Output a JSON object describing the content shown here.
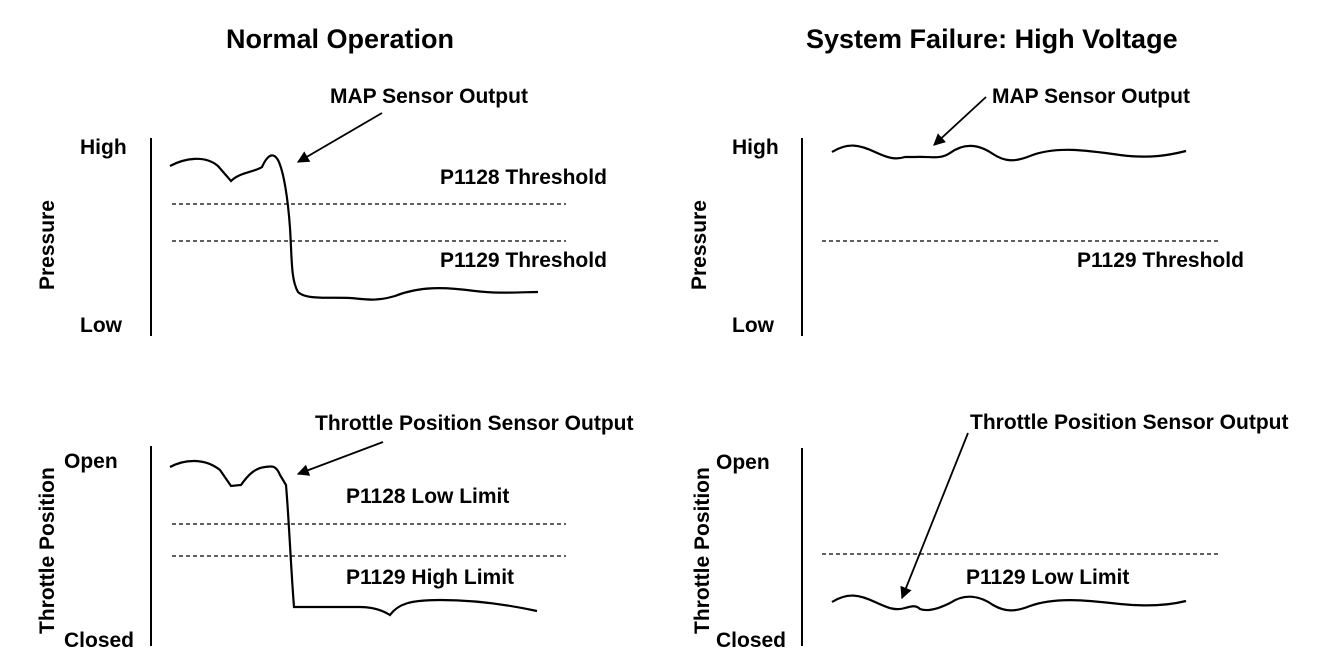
{
  "panels": {
    "left_title": "Normal Operation",
    "right_title": "System Failure: High Voltage"
  },
  "axis_labels": {
    "pressure": "Pressure",
    "throttle_position": "Throttle Position",
    "high": "High",
    "low": "Low",
    "open": "Open",
    "closed": "Closed"
  },
  "annotations": {
    "map_sensor_output": "MAP Sensor Output",
    "tps_output": "Throttle Position Sensor Output",
    "p1128_threshold": "P1128 Threshold",
    "p1129_threshold": "P1129 Threshold",
    "p1128_low_limit": "P1128 Low Limit",
    "p1129_high_limit": "P1129 High Limit",
    "p1129_low_limit": "P1129 Low Limit"
  }
}
